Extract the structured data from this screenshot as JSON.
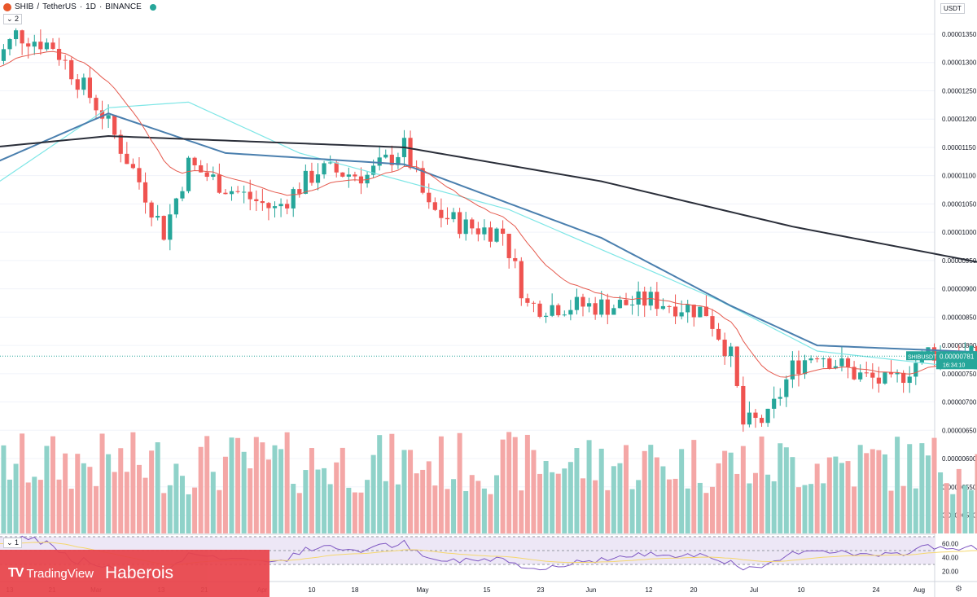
{
  "header": {
    "symbol": "SHIB",
    "pair": "TetherUS",
    "interval": "1D",
    "exchange": "BINANCE",
    "collapse_count": "2"
  },
  "price_axis": {
    "unit_label": "USDT",
    "ticks": [
      "0.00001350",
      "0.00001300",
      "0.00001250",
      "0.00001200",
      "0.00001150",
      "0.00001100",
      "0.00001050",
      "0.00001000",
      "0.00000950",
      "0.00000900",
      "0.00000850",
      "0.00000800",
      "0.00000750",
      "0.00000700",
      "0.00000650",
      "0.00000600",
      "0.00000550",
      "0.00000500"
    ],
    "symbol_tag": "SHIBUSDT",
    "last_price": "0.00000781",
    "countdown": "16:34:10"
  },
  "rsi_panel": {
    "collapse_count": "1",
    "ticks": [
      "60.00",
      "40.00",
      "20.00"
    ]
  },
  "time_axis": {
    "labels": [
      "13",
      "21",
      "Mar",
      "13",
      "21",
      "Apr",
      "10",
      "18",
      "May",
      "15",
      "23",
      "Jun",
      "12",
      "20",
      "Jul",
      "10",
      "24",
      "Aug"
    ]
  },
  "watermark": {
    "tv_text": "TradingView",
    "brand": "Haberois"
  },
  "colors": {
    "up": "#26a69a",
    "down": "#ef5350",
    "sma_long": "#2a2e39",
    "sma_mid": "#4a7fae",
    "ema_short": "#e55a4e",
    "sma_cyan": "#7ee6e6",
    "rsi_line": "#7e57c2",
    "rsi_ma": "#f5d76e",
    "rsi_band": "#ede7f6",
    "watermark_bg": "#e8434a"
  },
  "chart_data": {
    "type": "candlestick",
    "symbol": "SHIBUSDT",
    "scale_note": "prices in USDT x 1e-8",
    "anchors": [
      {
        "date": "Feb 10",
        "close": 1290
      },
      {
        "date": "Feb 14",
        "close": 1350
      },
      {
        "date": "Feb 20",
        "close": 1330
      },
      {
        "date": "Feb 28",
        "close": 1210
      },
      {
        "date": "Mar 6",
        "close": 1090
      },
      {
        "date": "Mar 10",
        "close": 1000
      },
      {
        "date": "Mar 14",
        "close": 1120
      },
      {
        "date": "Mar 20",
        "close": 1080
      },
      {
        "date": "Mar 28",
        "close": 1040
      },
      {
        "date": "Apr 4",
        "close": 1110
      },
      {
        "date": "Apr 12",
        "close": 1100
      },
      {
        "date": "Apr 18",
        "close": 1150
      },
      {
        "date": "Apr 22",
        "close": 1040
      },
      {
        "date": "Apr 28",
        "close": 1010
      },
      {
        "date": "May 4",
        "close": 1000
      },
      {
        "date": "May 8",
        "close": 870
      },
      {
        "date": "May 14",
        "close": 870
      },
      {
        "date": "May 22",
        "close": 870
      },
      {
        "date": "May 28",
        "close": 880
      },
      {
        "date": "Jun 6",
        "close": 860
      },
      {
        "date": "Jun 10",
        "close": 780
      },
      {
        "date": "Jun 12",
        "close": 660
      },
      {
        "date": "Jun 16",
        "close": 670
      },
      {
        "date": "Jun 20",
        "close": 760
      },
      {
        "date": "Jun 24",
        "close": 790
      },
      {
        "date": "Jun 30",
        "close": 750
      },
      {
        "date": "Jul 6",
        "close": 730
      },
      {
        "date": "Jul 12",
        "close": 790
      },
      {
        "date": "Jul 18",
        "close": 780
      },
      {
        "date": "Jul 24",
        "close": 781
      }
    ],
    "sma_long": [
      {
        "date": "Feb 10",
        "value": 1150
      },
      {
        "date": "Mar 1",
        "value": 1170
      },
      {
        "date": "Apr 18",
        "value": 1150
      },
      {
        "date": "May 20",
        "value": 1090
      },
      {
        "date": "Jun 20",
        "value": 1010
      },
      {
        "date": "Jul 25",
        "value": 937
      }
    ],
    "sma_mid": [
      {
        "date": "Feb 10",
        "value": 1120
      },
      {
        "date": "Mar 1",
        "value": 1210
      },
      {
        "date": "Mar 20",
        "value": 1140
      },
      {
        "date": "Apr 18",
        "value": 1120
      },
      {
        "date": "May 20",
        "value": 990
      },
      {
        "date": "Jun 10",
        "value": 870
      },
      {
        "date": "Jun 24",
        "value": 800
      },
      {
        "date": "Jul 25",
        "value": 786
      }
    ],
    "sma_cyan": [
      {
        "date": "Feb 10",
        "value": 1080
      },
      {
        "date": "Mar 1",
        "value": 1220
      },
      {
        "date": "Mar 14",
        "value": 1230
      },
      {
        "date": "Apr 1",
        "value": 1140
      },
      {
        "date": "May 5",
        "value": 1040
      },
      {
        "date": "Jun 8",
        "value": 880
      },
      {
        "date": "Jun 24",
        "value": 790
      },
      {
        "date": "Jul 25",
        "value": 752
      }
    ],
    "rsi_ticks": [
      60,
      40,
      20
    ],
    "rsi_band": [
      30,
      70
    ]
  }
}
